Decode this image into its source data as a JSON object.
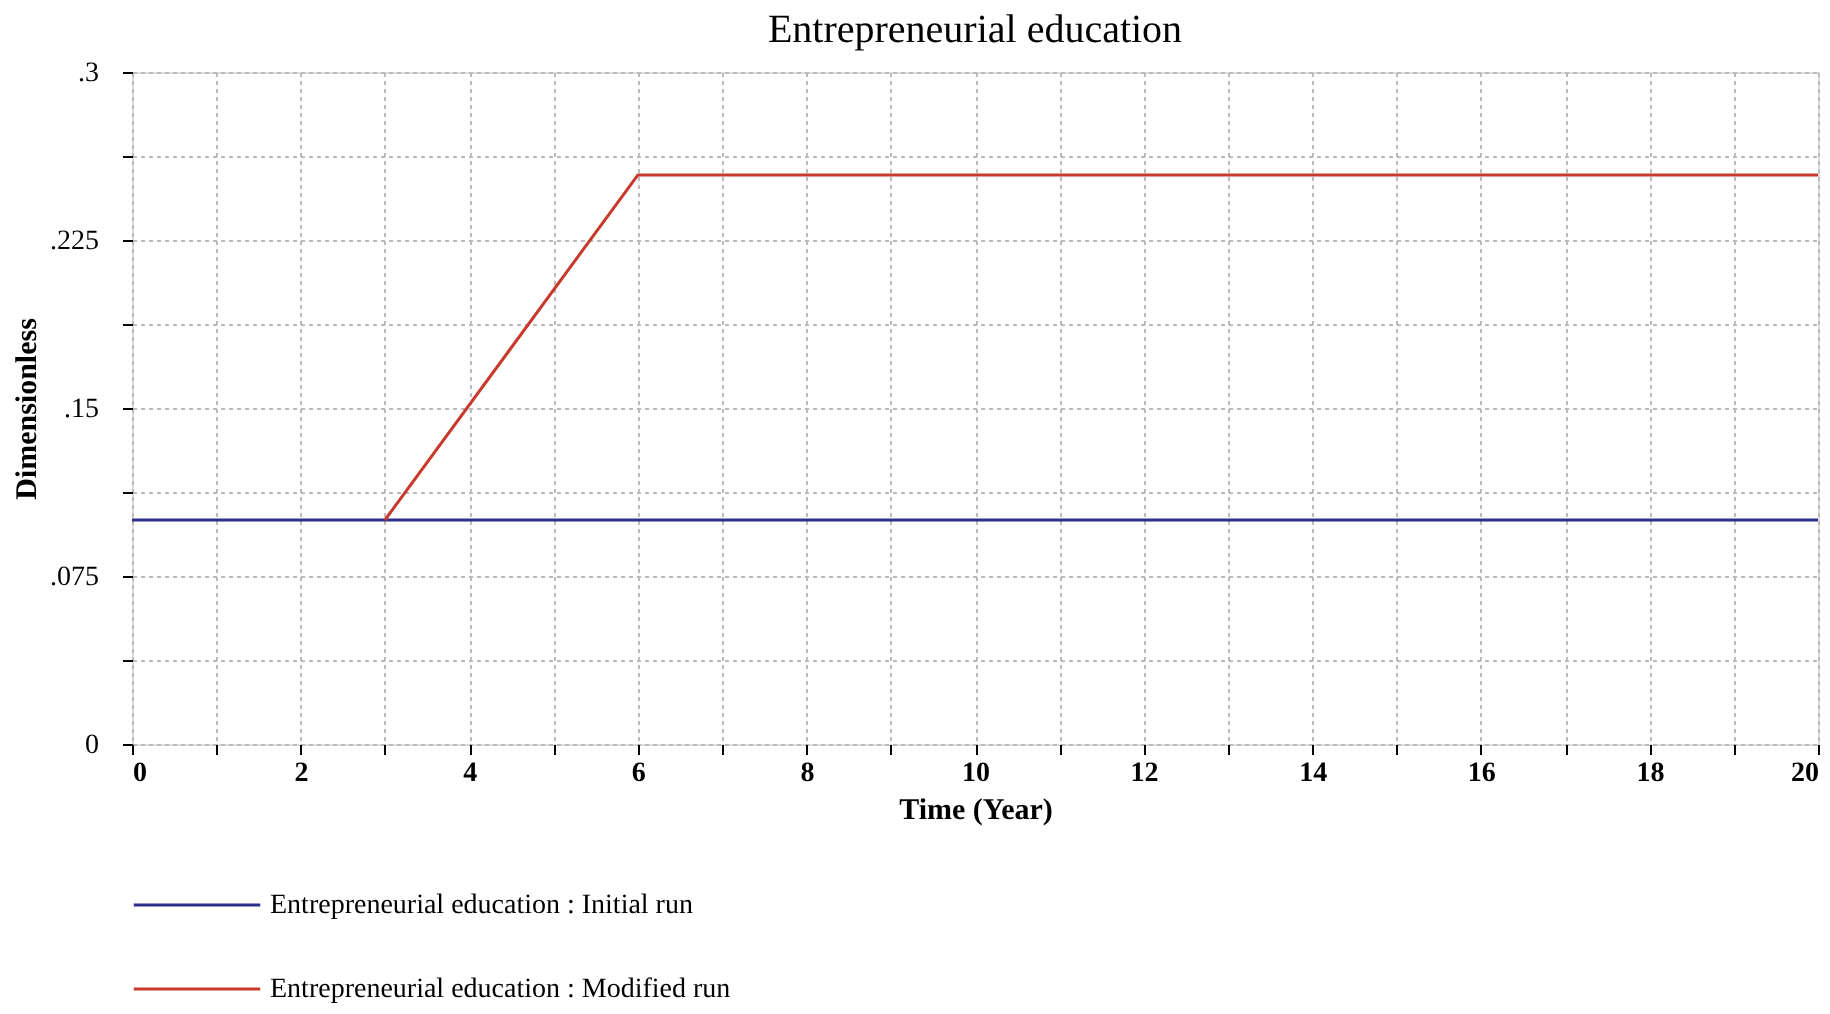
{
  "chart_data": {
    "type": "line",
    "title": "Entrepreneurial education",
    "xlabel": "Time (Year)",
    "ylabel": "Dimensionless",
    "xlim": [
      0,
      20
    ],
    "ylim": [
      0,
      0.3
    ],
    "xticks": [
      0,
      {
        "value": 1,
        "label": null
      },
      2,
      {
        "value": 3,
        "label": null
      },
      4,
      {
        "value": 5,
        "label": null
      },
      6,
      {
        "value": 7,
        "label": null
      },
      8,
      {
        "value": 9,
        "label": null
      },
      10,
      {
        "value": 11,
        "label": null
      },
      12,
      {
        "value": 13,
        "label": null
      },
      14,
      {
        "value": 15,
        "label": null
      },
      16,
      {
        "value": 17,
        "label": null
      },
      18,
      {
        "value": 19,
        "label": null
      },
      20
    ],
    "yticks": [
      0,
      {
        "value": 0.0375,
        "label": null
      },
      {
        "value": 0.075,
        "label": ".075"
      },
      {
        "value": 0.1125,
        "label": null
      },
      {
        "value": 0.15,
        "label": ".15"
      },
      {
        "value": 0.1875,
        "label": null
      },
      {
        "value": 0.225,
        "label": ".225"
      },
      {
        "value": 0.2625,
        "label": null
      },
      {
        "value": 0.3,
        "label": ".3"
      }
    ],
    "grid": true,
    "legend": "bottom",
    "series": [
      {
        "name": "Entrepreneurial education : Initial run",
        "color": "#2e2e8c",
        "x": [
          0,
          20
        ],
        "values": [
          0.1,
          0.1
        ]
      },
      {
        "name": "Entrepreneurial education : Modified run",
        "color": "#c8392b",
        "x": [
          3,
          6,
          20
        ],
        "values": [
          0.1,
          0.254,
          0.254
        ]
      }
    ]
  }
}
